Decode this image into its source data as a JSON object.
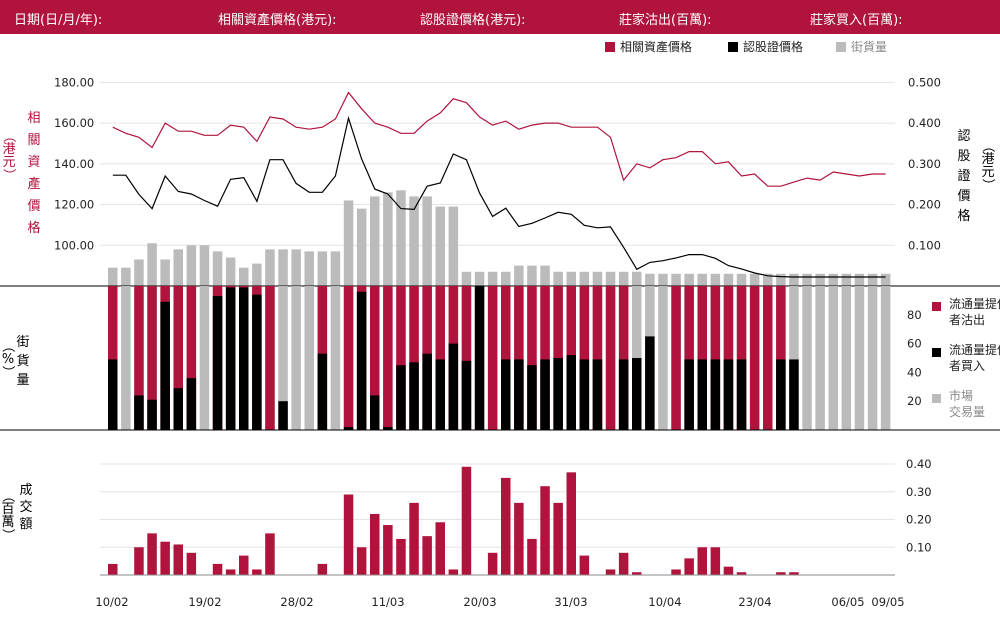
{
  "header": {
    "date_label": "日期(日/月/年):",
    "underlying_label": "相關資產價格(港元):",
    "warrant_label": "認股證價格(港元):",
    "sold_label": "莊家沽出(百萬):",
    "bought_label": "莊家買入(百萬):"
  },
  "colors": {
    "underlying": "#b0133c",
    "warrant": "#000000",
    "street": "#bbbbbb",
    "grid": "#e4e4e4"
  },
  "chart_data": [
    {
      "type": "line",
      "legend": [
        "相關資產價格",
        "認股證價格",
        "街貨量"
      ],
      "left_axis_label": "相關資產價格（港元）",
      "right_axis_label": "認股證價格（港元）",
      "left_ticks": [
        "180.00",
        "160.00",
        "140.00",
        "120.00",
        "100.00"
      ],
      "right_ticks": [
        "0.500",
        "0.400",
        "0.300",
        "0.200",
        "0.100"
      ],
      "ylim_left": [
        80,
        190
      ],
      "ylim_right": [
        0.0,
        0.55
      ],
      "series": [
        {
          "name": "相關資產價格",
          "axis": "left",
          "values": [
            158,
            155,
            153,
            148,
            160,
            156,
            156,
            154,
            154,
            159,
            158,
            151,
            163,
            162,
            158,
            157,
            158,
            162,
            175,
            167,
            160,
            158,
            155,
            155,
            161,
            165,
            172,
            170,
            163,
            159,
            161,
            157,
            159,
            160,
            160,
            158,
            158,
            158,
            153,
            132,
            140,
            138,
            142,
            143,
            146,
            146,
            140,
            141,
            134,
            135,
            129,
            129,
            131,
            133,
            132,
            136,
            135,
            134,
            135,
            135
          ]
        },
        {
          "name": "認股證價格",
          "axis": "right",
          "values": [
            0.272,
            0.272,
            0.225,
            0.19,
            0.27,
            0.232,
            0.226,
            0.21,
            0.196,
            0.262,
            0.266,
            0.208,
            0.31,
            0.31,
            0.252,
            0.23,
            0.23,
            0.27,
            0.412,
            0.312,
            0.238,
            0.226,
            0.19,
            0.188,
            0.245,
            0.253,
            0.324,
            0.31,
            0.228,
            0.171,
            0.191,
            0.146,
            0.154,
            0.167,
            0.181,
            0.176,
            0.149,
            0.143,
            0.145,
            0.095,
            0.041,
            0.058,
            0.062,
            0.069,
            0.077,
            0.077,
            0.068,
            0.05,
            0.042,
            0.032,
            0.025,
            0.023,
            0.022,
            0.022,
            0.022,
            0.022,
            0.022,
            0.022,
            0.022,
            0.022
          ]
        },
        {
          "name": "街貨量",
          "axis": "left",
          "style": "bar",
          "values": [
            89,
            89,
            93,
            101,
            93,
            98,
            100,
            100,
            97,
            94,
            89,
            91,
            98,
            98,
            98,
            97,
            97,
            97,
            122,
            118,
            124,
            126,
            127,
            124,
            124,
            119,
            119,
            87,
            87,
            87,
            87,
            90,
            90,
            90,
            87,
            87,
            87,
            87,
            87,
            87,
            87,
            86,
            86,
            86,
            86,
            86,
            86,
            86,
            86,
            86,
            86,
            86,
            86,
            86,
            86,
            86,
            86,
            86,
            86,
            86
          ]
        }
      ]
    },
    {
      "type": "bar",
      "legend": [
        "流通量提供者沽出",
        "流通量提供者買入",
        "市場交易量"
      ],
      "left_axis_label": "街貨量（%）",
      "ticks": [
        "80",
        "60",
        "40",
        "20"
      ],
      "ylim": [
        0,
        100
      ],
      "series": [
        {
          "name": "市場交易量",
          "values": [
            100,
            100,
            100,
            100,
            100,
            100,
            100,
            100,
            100,
            100,
            100,
            100,
            100,
            100,
            100,
            100,
            100,
            100,
            100,
            100,
            100,
            100,
            100,
            100,
            100,
            100,
            100,
            100,
            100,
            100,
            100,
            100,
            100,
            100,
            100,
            100,
            100,
            100,
            100,
            100,
            100,
            100,
            100,
            100,
            100,
            100,
            100,
            100,
            100,
            100,
            100,
            100,
            100,
            100,
            100,
            100,
            100,
            100,
            100,
            100
          ]
        },
        {
          "name": "流通量提供者沽出",
          "values": [
            100,
            0,
            100,
            100,
            100,
            100,
            100,
            0,
            100,
            100,
            100,
            100,
            100,
            0,
            0,
            0,
            100,
            0,
            100,
            100,
            100,
            100,
            100,
            100,
            100,
            100,
            100,
            100,
            0,
            100,
            100,
            100,
            100,
            100,
            100,
            100,
            100,
            100,
            100,
            100,
            0,
            0,
            0,
            100,
            100,
            100,
            100,
            100,
            100,
            100,
            100,
            100,
            0,
            0,
            0,
            0,
            0,
            0,
            0,
            0
          ]
        },
        {
          "name": "流通量提供者買入",
          "values": [
            49,
            0,
            24,
            21,
            89,
            29,
            36,
            0,
            93,
            99,
            99,
            94,
            0,
            20,
            0,
            0,
            53,
            0,
            2,
            96,
            24,
            2,
            45,
            47,
            53,
            49,
            60,
            48,
            100,
            0,
            49,
            49,
            45,
            49,
            50,
            52,
            49,
            49,
            0,
            49,
            50,
            65,
            0,
            0,
            49,
            49,
            49,
            49,
            49,
            0,
            0,
            49,
            49,
            0,
            0,
            0,
            0,
            0,
            0,
            0
          ]
        }
      ]
    },
    {
      "type": "bar",
      "left_axis_label": "成交額（百萬）",
      "ticks": [
        "0.40",
        "0.30",
        "0.20",
        "0.10"
      ],
      "ylim": [
        0,
        0.4
      ],
      "series": [
        {
          "name": "成交額",
          "values": [
            0.04,
            0,
            0.1,
            0.15,
            0.12,
            0.11,
            0.08,
            0,
            0.04,
            0.02,
            0.07,
            0.02,
            0.15,
            0,
            0,
            0,
            0.04,
            0,
            0.29,
            0.1,
            0.22,
            0.18,
            0.13,
            0.26,
            0.14,
            0.19,
            0.02,
            0.39,
            0,
            0.08,
            0.35,
            0.26,
            0.13,
            0.32,
            0.26,
            0.37,
            0.07,
            0,
            0.02,
            0.08,
            0.01,
            0,
            0,
            0.02,
            0.06,
            0.1,
            0.1,
            0.03,
            0.01,
            0,
            0,
            0.01,
            0.01,
            0,
            0,
            0,
            0,
            0,
            0,
            0
          ]
        }
      ],
      "x_tick_labels": [
        "10/02",
        "19/02",
        "28/02",
        "11/03",
        "20/03",
        "31/03",
        "10/04",
        "23/04",
        "06/05",
        "09/05"
      ]
    }
  ]
}
